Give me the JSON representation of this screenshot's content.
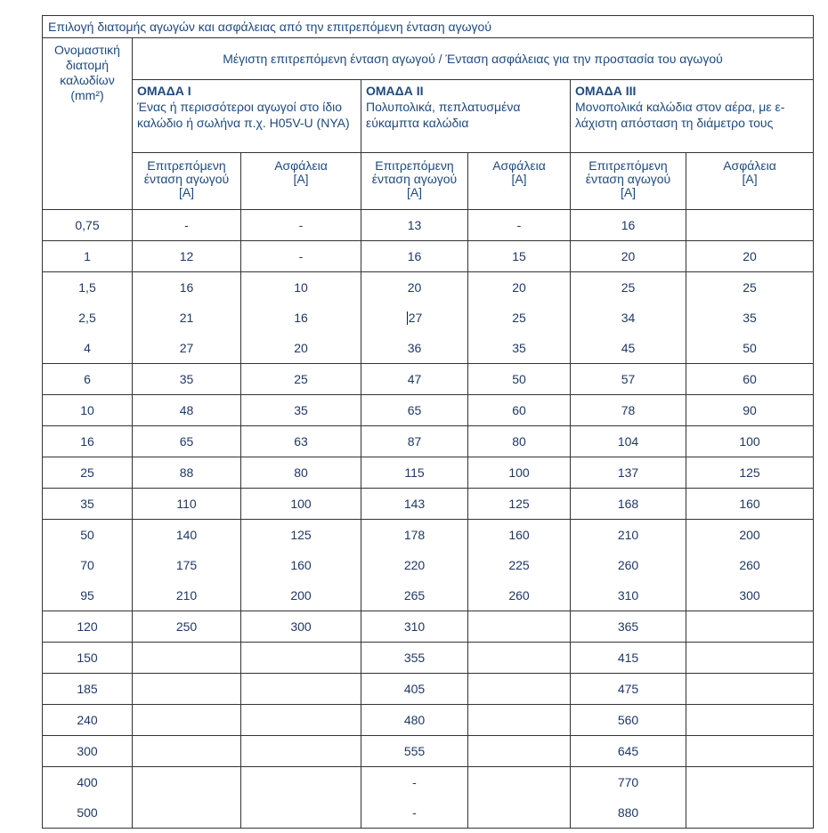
{
  "colors": {
    "header_text": "#1F497D",
    "data_text": "#203864",
    "border": "#333333",
    "background": "#FFFFFF"
  },
  "table": {
    "title": "Επιλογή διατομής αγωγών και ασφάλειας από την επιτρεπόμενη ένταση αγωγού",
    "size_header": "Ονομαστική διατομή καλωδίων (mm²)",
    "main_header": "Μέγιστη επιτρεπόμενη ένταση αγωγού / Ένταση ασφάλειας για την προστασία του αγωγού",
    "groups": [
      {
        "name": "ΟΜΑΔΑ I",
        "description": "Ένας ή περισσότεροι αγωγοί στο ίδιο καλώδιο ή σωλήνα π.χ. H05V-U (NYA)"
      },
      {
        "name": "ΟΜΑΔΑ II",
        "description": "Πολυπολικά, πεπλατυσμένα εύκαμπτα καλώδια"
      },
      {
        "name": "ΟΜΑΔΑ III",
        "description": "Μονοπολικά καλώδια στον αέρα, με ε-λάχιστη απόσταση τη διάμετρο τους"
      }
    ],
    "subheader": {
      "current": "Επιτρεπόμενη ένταση αγωγού",
      "fuse": "Ασφάλεια",
      "unit": "[A]"
    },
    "caret": {
      "size": "2,5",
      "col": 3
    },
    "row_groups": [
      [
        {
          "size": "0,75",
          "values": [
            "-",
            "-",
            "13",
            "-",
            "16",
            ""
          ]
        }
      ],
      [
        {
          "size": "1",
          "values": [
            "12",
            "-",
            "16",
            "15",
            "20",
            "20"
          ]
        }
      ],
      [
        {
          "size": "1,5",
          "values": [
            "16",
            "10",
            "20",
            "20",
            "25",
            "25"
          ]
        },
        {
          "size": "2,5",
          "values": [
            "21",
            "16",
            "27",
            "25",
            "34",
            "35"
          ]
        },
        {
          "size": "4",
          "values": [
            "27",
            "20",
            "36",
            "35",
            "45",
            "50"
          ]
        }
      ],
      [
        {
          "size": "6",
          "values": [
            "35",
            "25",
            "47",
            "50",
            "57",
            "60"
          ]
        }
      ],
      [
        {
          "size": "10",
          "values": [
            "48",
            "35",
            "65",
            "60",
            "78",
            "90"
          ]
        }
      ],
      [
        {
          "size": "16",
          "values": [
            "65",
            "63",
            "87",
            "80",
            "104",
            "100"
          ]
        }
      ],
      [
        {
          "size": "25",
          "values": [
            "88",
            "80",
            "115",
            "100",
            "137",
            "125"
          ]
        }
      ],
      [
        {
          "size": "35",
          "values": [
            "110",
            "100",
            "143",
            "125",
            "168",
            "160"
          ]
        }
      ],
      [
        {
          "size": "50",
          "values": [
            "140",
            "125",
            "178",
            "160",
            "210",
            "200"
          ]
        },
        {
          "size": "70",
          "values": [
            "175",
            "160",
            "220",
            "225",
            "260",
            "260"
          ]
        },
        {
          "size": "95",
          "values": [
            "210",
            "200",
            "265",
            "260",
            "310",
            "300"
          ]
        }
      ],
      [
        {
          "size": "120",
          "values": [
            "250",
            "300",
            "310",
            "",
            "365",
            ""
          ]
        }
      ],
      [
        {
          "size": "150",
          "values": [
            "",
            "",
            "355",
            "",
            "415",
            ""
          ]
        }
      ],
      [
        {
          "size": "185",
          "values": [
            "",
            "",
            "405",
            "",
            "475",
            ""
          ]
        }
      ],
      [
        {
          "size": "240",
          "values": [
            "",
            "",
            "480",
            "",
            "560",
            ""
          ]
        }
      ],
      [
        {
          "size": "300",
          "values": [
            "",
            "",
            "555",
            "",
            "645",
            ""
          ]
        }
      ],
      [
        {
          "size": "400",
          "values": [
            "",
            "",
            "-",
            "",
            "770",
            ""
          ]
        },
        {
          "size": "500",
          "values": [
            "",
            "",
            "-",
            "",
            "880",
            ""
          ]
        }
      ]
    ]
  }
}
